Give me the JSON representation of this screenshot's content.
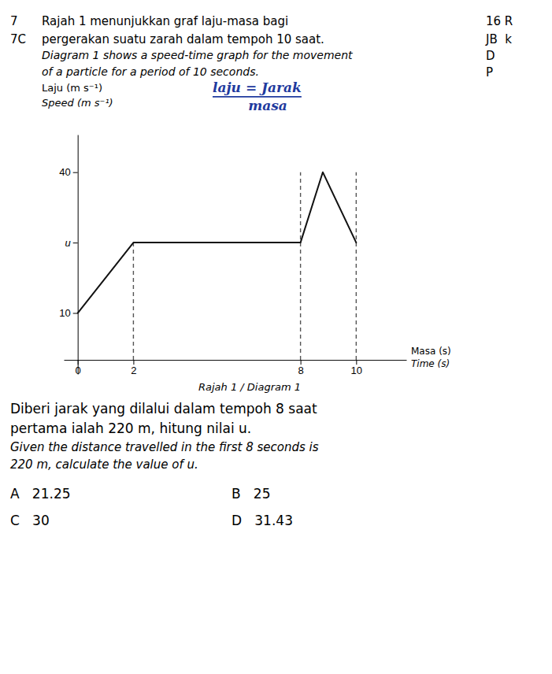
{
  "chart_data": {
    "type": "line",
    "question_number": "7",
    "question_letter": "7C",
    "title": [
      "Rajah 1 menunjukkan graf laju-masa bagi",
      "pergerakan suatu zarah dalam tempoh 10 saat.",
      "Diagram 1 shows a speed-time graph for the movement",
      "of a particle for a period of 10 seconds."
    ],
    "margin_notes": [
      "16 R",
      "JB  k",
      "D",
      "P"
    ],
    "handwritten": [
      "laju = Jarak",
      "masa"
    ],
    "ylabel": [
      "Laju (m s⁻¹)",
      "Speed (m s⁻¹)"
    ],
    "xlabel": [
      "Masa (s)",
      "Time (s)"
    ],
    "x": [
      0,
      2,
      8,
      8.8,
      10
    ],
    "values": [
      10,
      25,
      25,
      40,
      25
    ],
    "color": "#111111",
    "dashed_lines": {
      "x": [
        2,
        8,
        10
      ],
      "y": [
        25,
        40,
        40
      ]
    },
    "xlim": [
      -0.5,
      11.8
    ],
    "ylim": [
      -3,
      48
    ],
    "xticks": [
      0,
      2,
      8,
      10
    ],
    "yticks": [
      10,
      {
        "value": 25,
        "label": "u"
      },
      40
    ],
    "caption": "Rajah 1 / Diagram 1",
    "question": [
      "Diberi jarak yang dilalui dalam tempoh 8 saat",
      "pertama ialah 220 m, hitung nilai u.",
      "Given the distance travelled in the first 8 seconds is",
      "220 m, calculate the value of u."
    ],
    "options": [
      "A   21.25",
      "B   25",
      "C   30",
      "D   31.43"
    ]
  }
}
